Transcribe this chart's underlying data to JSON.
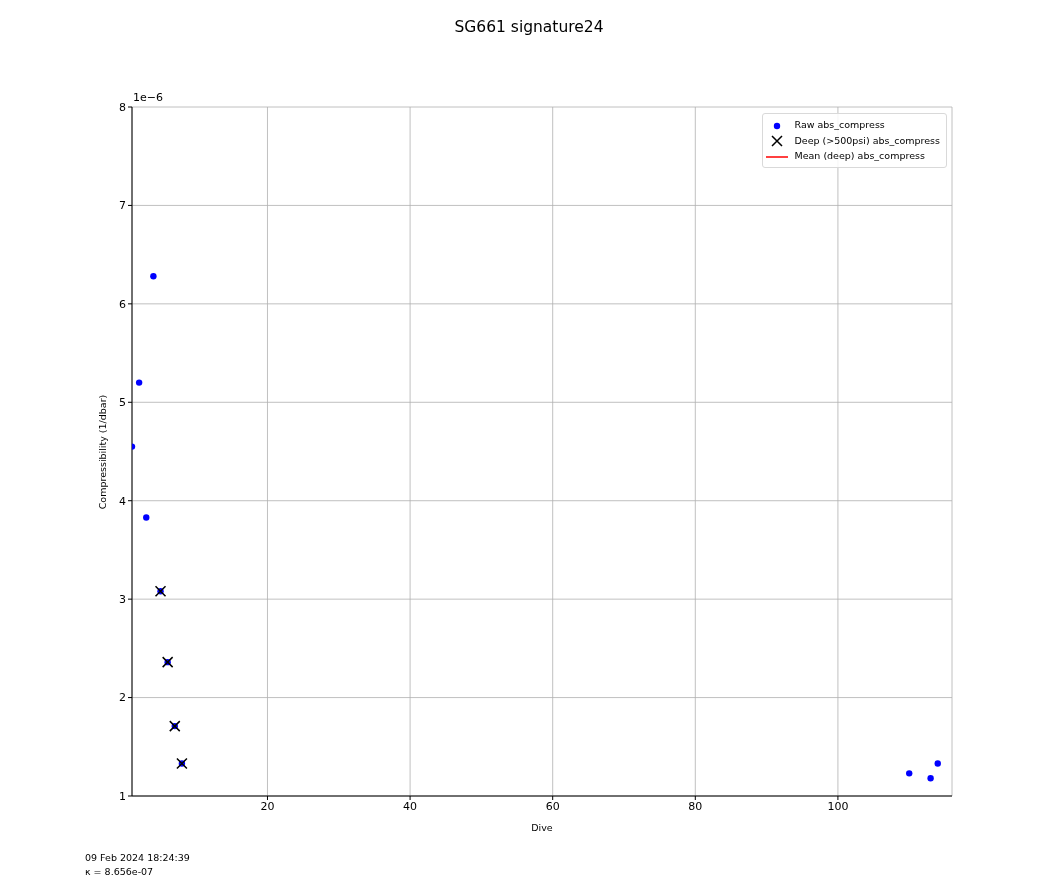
{
  "chart_data": {
    "type": "scatter",
    "title": "SG661 signature24",
    "xlabel": "Dive",
    "ylabel": "Compressibility (1/dbar)",
    "annotations": [
      "1e−6",
      "09 Feb 2024 18:24:39",
      "κ = 8.656e-07"
    ],
    "xlim": [
      1,
      116
    ],
    "xticks": [
      20,
      40,
      60,
      80,
      100
    ],
    "ylim": [
      1,
      8
    ],
    "yticks": [
      1,
      2,
      3,
      4,
      5,
      6,
      7,
      8
    ],
    "grid": true,
    "legend": "top right",
    "series": [
      {
        "name": "Raw abs_compress",
        "color": "#0000ff",
        "marker": "circle",
        "x": [
          1,
          2,
          3,
          4,
          5,
          6,
          7,
          8,
          110,
          113,
          114
        ],
        "values": [
          4.55,
          5.2,
          3.83,
          6.28,
          3.08,
          2.36,
          1.71,
          1.33,
          1.23,
          1.18,
          1.33
        ]
      },
      {
        "name": "Deep (>500psi) abs_compress",
        "color": "#000000",
        "marker": "cross",
        "x": [
          5,
          6,
          7,
          8
        ],
        "values": [
          3.08,
          2.36,
          1.71,
          1.33
        ]
      },
      {
        "name": "Mean (deep) abs_compress",
        "type": "line",
        "color": "#ff0000",
        "line_style": "solid"
      }
    ]
  }
}
